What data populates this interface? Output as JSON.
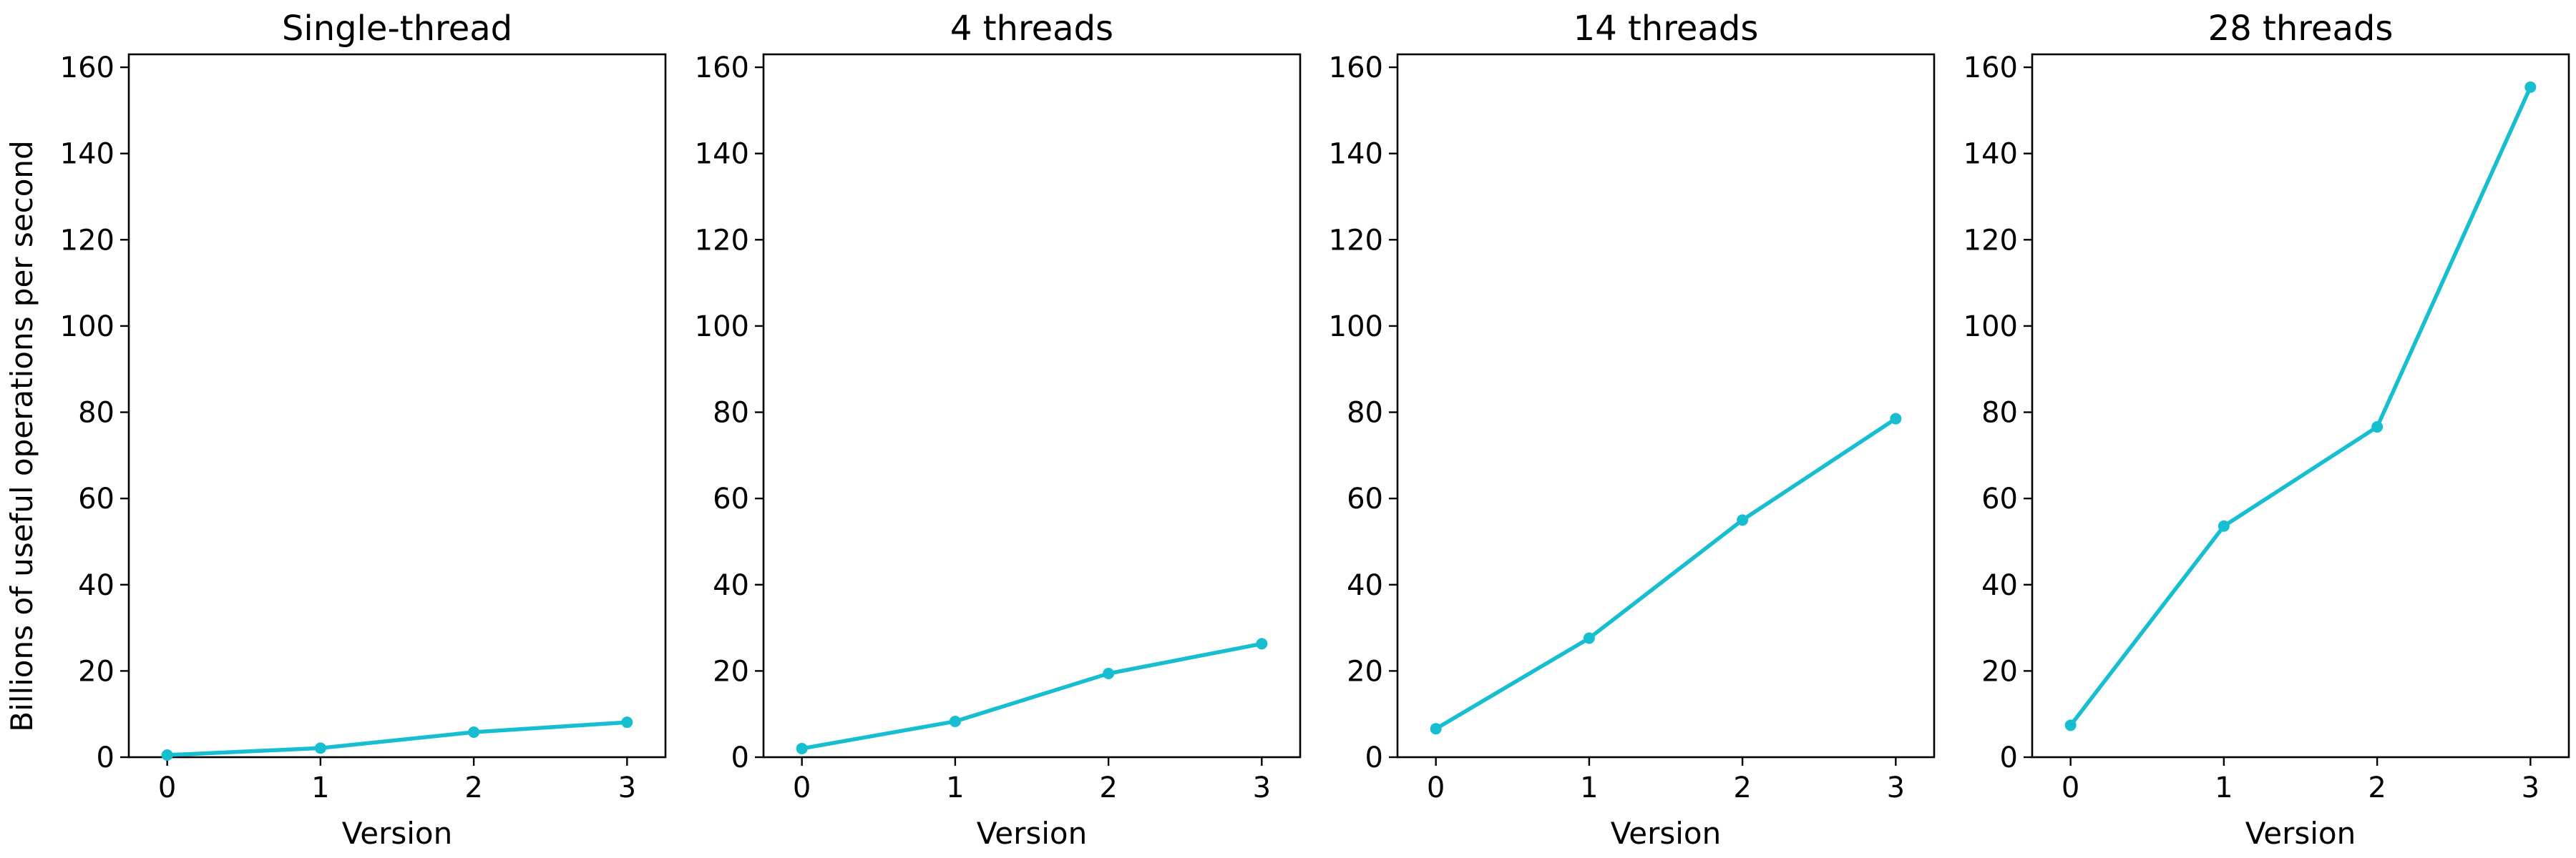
{
  "chart_data": {
    "type": "line",
    "ylabel": "Billions of useful operations per second",
    "xlabel": "Version",
    "series_color": "#17becf",
    "x": [
      0,
      1,
      2,
      3
    ],
    "xticks": [
      0,
      1,
      2,
      3
    ],
    "ylim": [
      0,
      163
    ],
    "yticks": [
      0,
      20,
      40,
      60,
      80,
      100,
      120,
      140,
      160
    ],
    "panels": [
      {
        "title": "Single-thread",
        "values": [
          0.5,
          2.1,
          5.8,
          8.1
        ]
      },
      {
        "title": "4 threads",
        "values": [
          2.0,
          8.3,
          19.4,
          26.3
        ]
      },
      {
        "title": "14 threads",
        "values": [
          6.6,
          27.6,
          55.0,
          78.5
        ]
      },
      {
        "title": "28 threads",
        "values": [
          7.4,
          53.6,
          76.6,
          155.4
        ]
      }
    ]
  }
}
